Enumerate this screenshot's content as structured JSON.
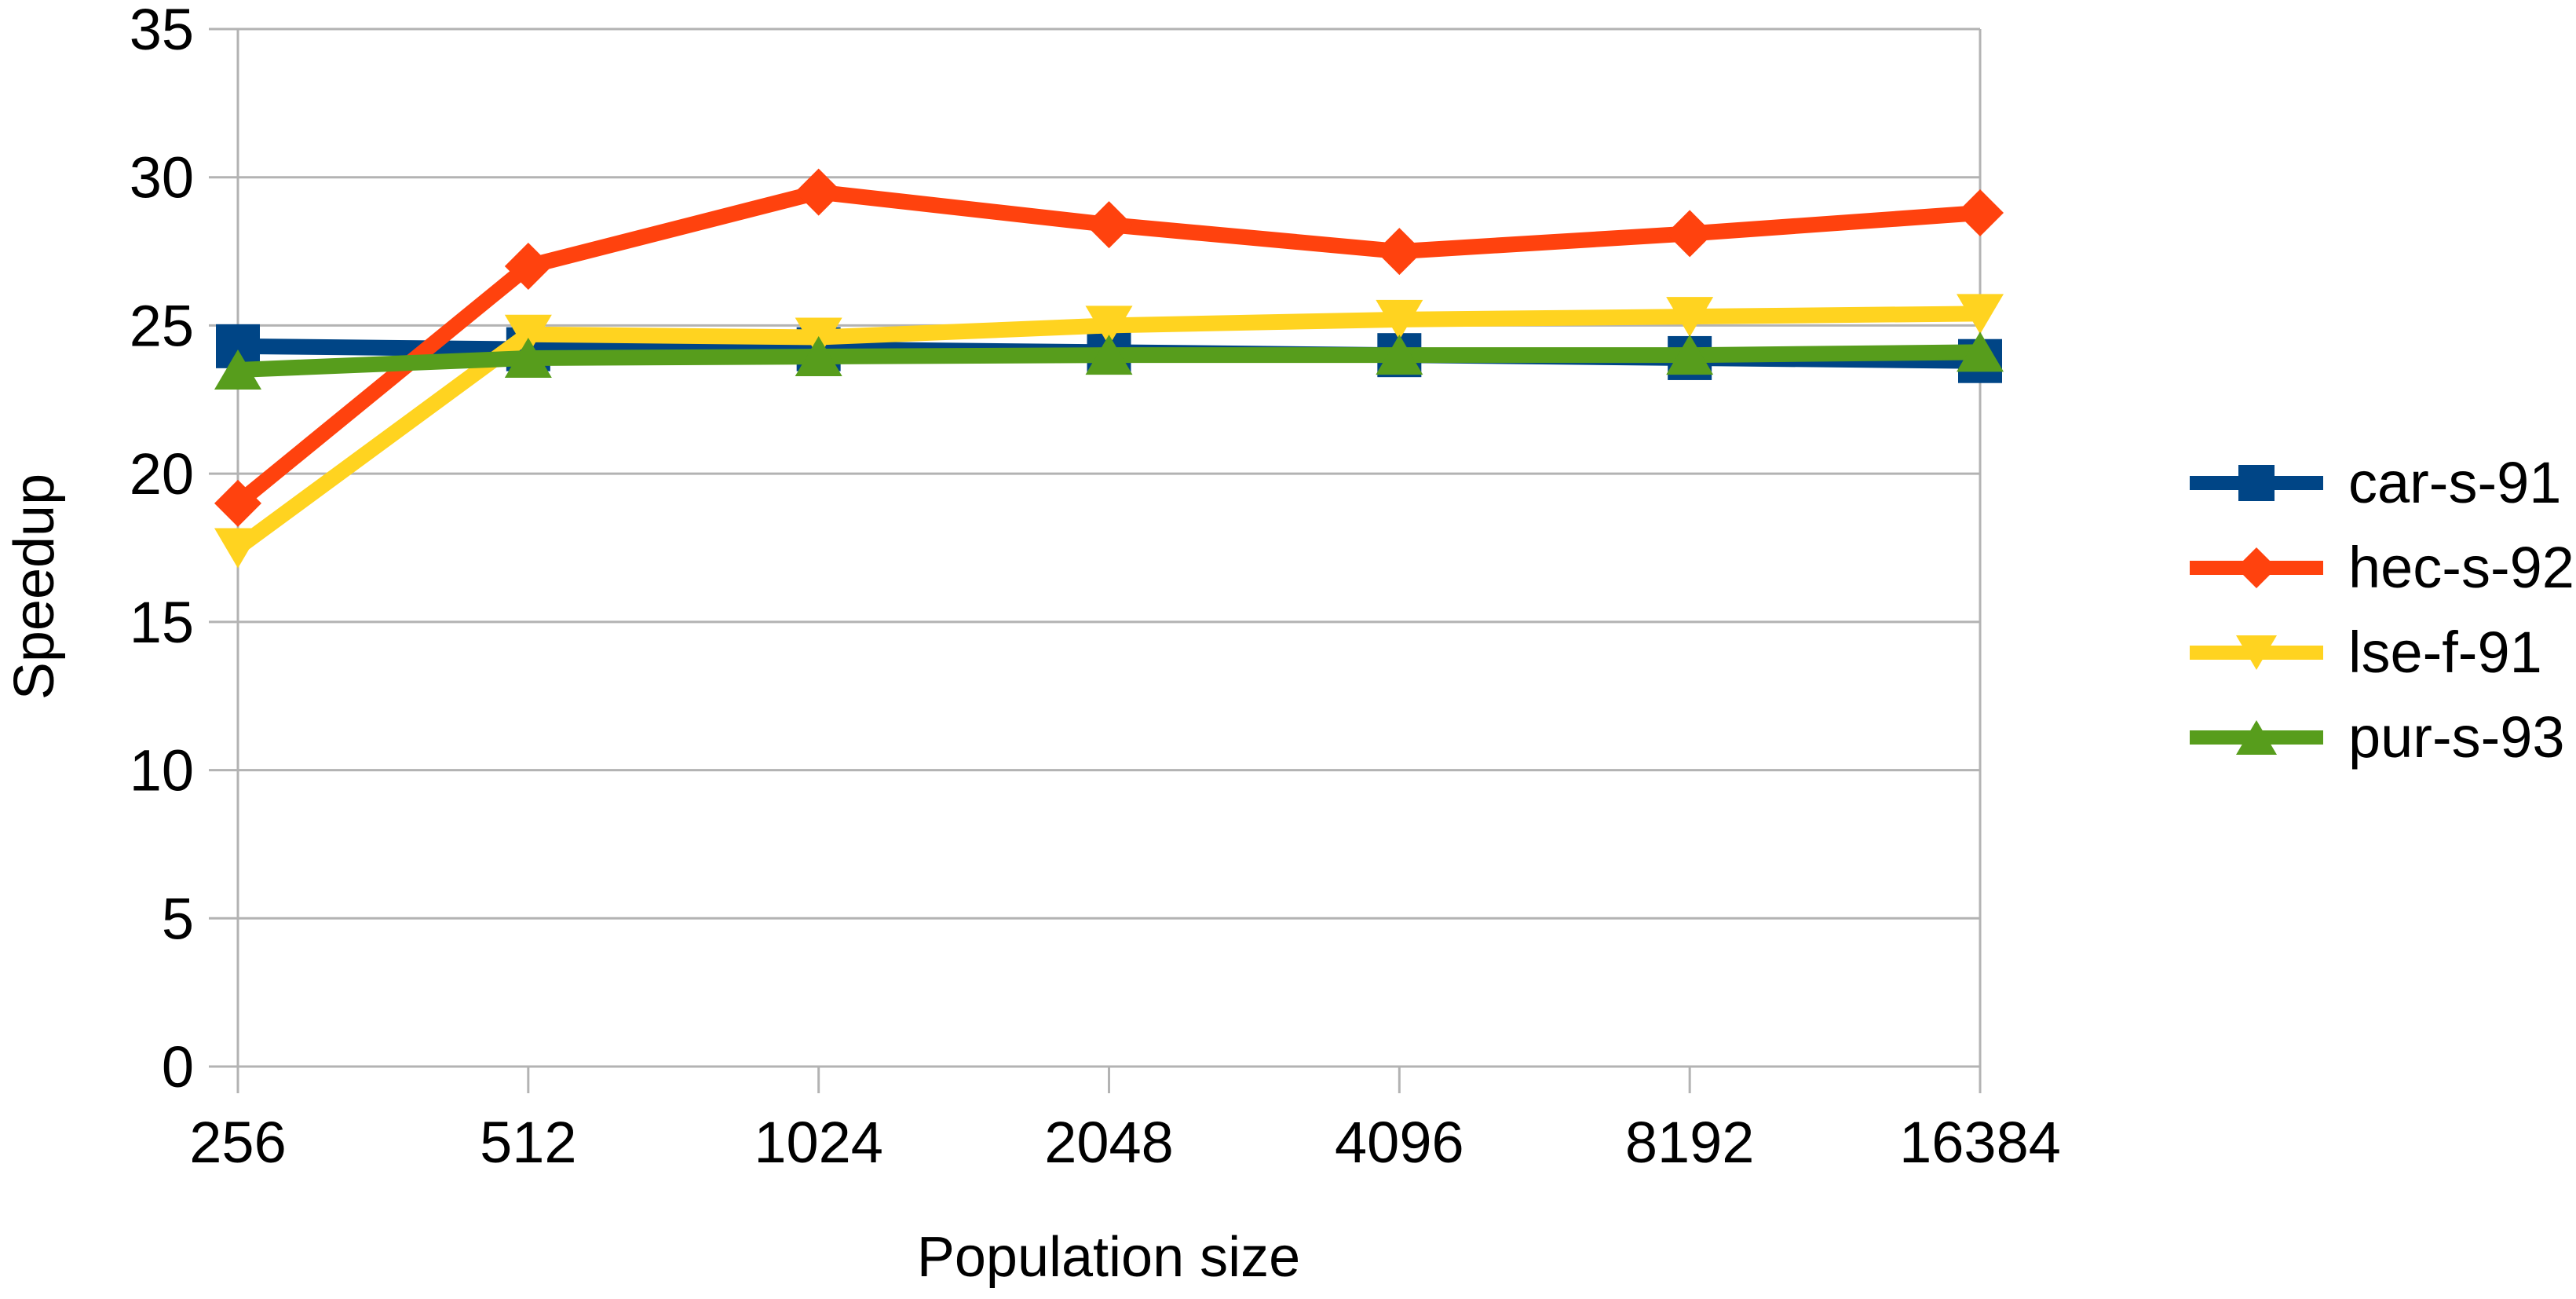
{
  "chart_data": {
    "type": "line",
    "title": "",
    "xlabel": "Population size",
    "ylabel": "Speedup",
    "categories": [
      "256",
      "512",
      "1024",
      "2048",
      "4096",
      "8192",
      "16384"
    ],
    "x_scale_note": "categorical, powers of two",
    "ylim": [
      0,
      35
    ],
    "y_ticks": [
      0,
      5,
      10,
      15,
      20,
      25,
      30,
      35
    ],
    "grid": "horizontal-gridlines-on",
    "legend_position": "right",
    "axis_color": "#b3b3b3",
    "text_color": "#000000",
    "background_color": "#ffffff",
    "series": [
      {
        "name": "car-s-91",
        "color": "#004586",
        "marker": "square",
        "values": [
          24.3,
          24.2,
          24.2,
          24.1,
          24.0,
          23.9,
          23.8
        ]
      },
      {
        "name": "hec-s-92",
        "color": "#FF420E",
        "marker": "diamond",
        "values": [
          19.0,
          27.0,
          29.5,
          28.4,
          27.5,
          28.1,
          28.8
        ]
      },
      {
        "name": "lse-f-91",
        "color": "#FFD320",
        "marker": "triangle-down",
        "values": [
          17.5,
          24.7,
          24.6,
          25.0,
          25.2,
          25.3,
          25.4
        ]
      },
      {
        "name": "pur-s-93",
        "color": "#579D1C",
        "marker": "triangle-up",
        "values": [
          23.5,
          23.9,
          23.95,
          24.0,
          24.0,
          24.0,
          24.1
        ]
      }
    ]
  }
}
